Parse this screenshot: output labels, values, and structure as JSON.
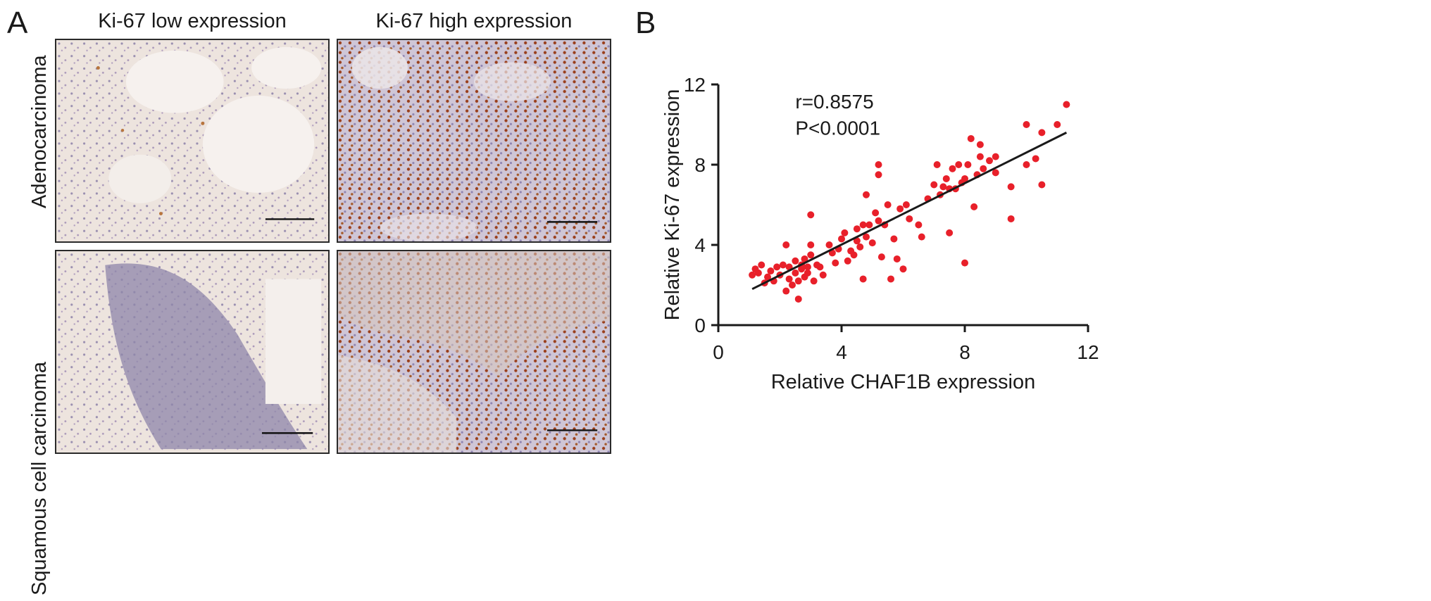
{
  "panel_a": {
    "letter": "A",
    "columns": [
      "Ki-67 low expression",
      "Ki-67 high expression"
    ],
    "rows": [
      "Adenocarcinoma",
      "Squamous cell carcinoma"
    ]
  },
  "panel_b": {
    "letter": "B"
  },
  "chart_data": {
    "type": "scatter",
    "title": "",
    "xlabel": "Relative CHAF1B expression",
    "ylabel": "Relative Ki-67 expression",
    "xlim": [
      0,
      12
    ],
    "ylim": [
      0,
      12
    ],
    "xticks": [
      0,
      4,
      8,
      12
    ],
    "yticks": [
      0,
      4,
      8,
      12
    ],
    "grid": false,
    "annotations": [
      "r=0.8575",
      "P<0.0001"
    ],
    "point_color": "#e8202a",
    "fit_line": {
      "x": [
        1.1,
        11.3
      ],
      "y": [
        1.8,
        9.6
      ]
    },
    "points": [
      [
        1.1,
        2.5
      ],
      [
        1.2,
        2.8
      ],
      [
        1.3,
        2.6
      ],
      [
        1.4,
        3.0
      ],
      [
        1.5,
        2.1
      ],
      [
        1.6,
        2.4
      ],
      [
        1.7,
        2.7
      ],
      [
        1.8,
        2.2
      ],
      [
        1.9,
        2.9
      ],
      [
        2.0,
        2.5
      ],
      [
        2.1,
        3.0
      ],
      [
        2.2,
        1.7
      ],
      [
        2.2,
        4.0
      ],
      [
        2.3,
        2.3
      ],
      [
        2.3,
        2.9
      ],
      [
        2.4,
        2.0
      ],
      [
        2.5,
        2.6
      ],
      [
        2.5,
        3.2
      ],
      [
        2.6,
        1.3
      ],
      [
        2.6,
        2.2
      ],
      [
        2.7,
        2.8
      ],
      [
        2.7,
        3.0
      ],
      [
        2.8,
        2.4
      ],
      [
        2.8,
        3.3
      ],
      [
        2.9,
        2.6
      ],
      [
        2.9,
        2.9
      ],
      [
        3.0,
        3.5
      ],
      [
        3.0,
        4.0
      ],
      [
        3.0,
        5.5
      ],
      [
        3.1,
        2.2
      ],
      [
        3.2,
        3.0
      ],
      [
        3.3,
        2.9
      ],
      [
        3.4,
        2.5
      ],
      [
        3.6,
        4.0
      ],
      [
        3.7,
        3.6
      ],
      [
        3.8,
        3.1
      ],
      [
        3.9,
        3.8
      ],
      [
        4.0,
        4.3
      ],
      [
        4.1,
        4.6
      ],
      [
        4.2,
        3.2
      ],
      [
        4.3,
        3.7
      ],
      [
        4.4,
        3.5
      ],
      [
        4.5,
        4.8
      ],
      [
        4.5,
        4.2
      ],
      [
        4.6,
        3.9
      ],
      [
        4.7,
        5.0
      ],
      [
        4.7,
        2.3
      ],
      [
        4.8,
        6.5
      ],
      [
        4.8,
        4.4
      ],
      [
        4.9,
        5.0
      ],
      [
        5.0,
        4.1
      ],
      [
        5.1,
        5.6
      ],
      [
        5.2,
        5.2
      ],
      [
        5.3,
        3.4
      ],
      [
        5.4,
        5.0
      ],
      [
        5.5,
        6.0
      ],
      [
        5.6,
        2.3
      ],
      [
        5.7,
        4.3
      ],
      [
        5.8,
        3.3
      ],
      [
        5.9,
        5.8
      ],
      [
        6.0,
        2.8
      ],
      [
        6.1,
        6.0
      ],
      [
        6.2,
        5.3
      ],
      [
        5.2,
        8.0
      ],
      [
        5.2,
        7.5
      ],
      [
        6.5,
        5.0
      ],
      [
        6.6,
        4.4
      ],
      [
        6.8,
        6.3
      ],
      [
        7.0,
        7.0
      ],
      [
        7.1,
        8.0
      ],
      [
        7.2,
        6.5
      ],
      [
        7.3,
        6.9
      ],
      [
        7.4,
        7.3
      ],
      [
        7.5,
        4.6
      ],
      [
        7.5,
        6.8
      ],
      [
        7.6,
        7.8
      ],
      [
        7.7,
        6.8
      ],
      [
        7.8,
        8.0
      ],
      [
        7.9,
        7.1
      ],
      [
        8.0,
        3.1
      ],
      [
        8.0,
        7.3
      ],
      [
        8.1,
        8.0
      ],
      [
        8.2,
        9.3
      ],
      [
        8.3,
        5.9
      ],
      [
        8.4,
        7.5
      ],
      [
        8.5,
        8.4
      ],
      [
        8.5,
        9.0
      ],
      [
        8.6,
        7.8
      ],
      [
        8.8,
        8.2
      ],
      [
        9.0,
        8.4
      ],
      [
        9.0,
        7.6
      ],
      [
        9.5,
        5.3
      ],
      [
        9.5,
        6.9
      ],
      [
        10.0,
        10.0
      ],
      [
        10.0,
        8.0
      ],
      [
        10.3,
        8.3
      ],
      [
        10.5,
        9.6
      ],
      [
        10.5,
        7.0
      ],
      [
        11.0,
        10.0
      ],
      [
        11.3,
        11.0
      ]
    ]
  }
}
